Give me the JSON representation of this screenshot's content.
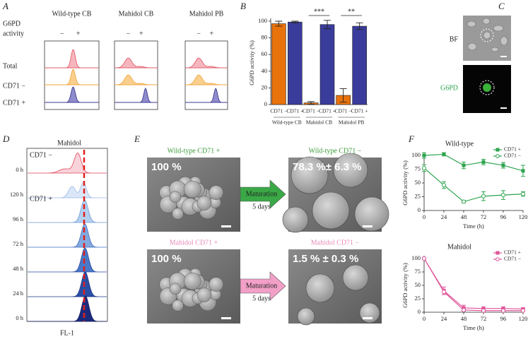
{
  "panels": {
    "a": {
      "label": "A",
      "columns": [
        "Wild-type CB",
        "Mahidol CB",
        "Mahidol PB"
      ],
      "activity_label": [
        "G6PD",
        "activity"
      ],
      "signs": [
        "−",
        "+"
      ],
      "rows": [
        "Total",
        "CD71 −",
        "CD71 +"
      ]
    },
    "c": {
      "label": "C",
      "bf": "BF",
      "g6pd": "G6PD"
    },
    "d": {
      "label": "D",
      "title": "Mahidol",
      "annotations": [
        "CD71 −",
        "CD71 +"
      ],
      "rows": [
        "0 h",
        "120 h",
        "96 h",
        "72 h",
        "48 h",
        "24 h",
        "0 h"
      ],
      "xlabel": "FL-1"
    },
    "e": {
      "label": "E",
      "rows": [
        {
          "left_title": "Wild-type CD71 +",
          "left_value": "100 %",
          "arrow": [
            "Maturation",
            "5 days"
          ],
          "right_title": "Wild-type CD71 −",
          "right_value": "78.3 %± 6.3 %"
        },
        {
          "left_title": "Mahidol CD71 +",
          "left_value": "100 %",
          "arrow": [
            "Maturation",
            "5 days"
          ],
          "right_title": "Mahidol CD71 −",
          "right_value": "1.5 % ± 0.3 %"
        }
      ]
    }
  },
  "chart_data": [
    {
      "type": "bar",
      "panel_label": "B",
      "ylabel": "G6PD activity (%)",
      "categories": [
        "CD71 −",
        "CD71 +",
        "CD71 −",
        "CD71 +",
        "CD71 −",
        "CD71 +"
      ],
      "groups": [
        "Wild-type CB",
        "Mahidol CB",
        "Mahidol PB"
      ],
      "values": [
        97,
        99,
        2,
        96,
        11,
        94
      ],
      "errors": [
        3,
        1,
        1.5,
        5,
        8,
        4
      ],
      "colors": [
        "#e8720c",
        "#3a3c9c",
        "#e8720c",
        "#3a3c9c",
        "#e8720c",
        "#3a3c9c"
      ],
      "ylim": [
        0,
        100
      ],
      "yticks": [
        0,
        20,
        40,
        60,
        80,
        100
      ],
      "annotations": [
        "***",
        "**"
      ]
    },
    {
      "type": "line",
      "panel_label": "F",
      "title": "Wild-type",
      "ylabel": "G6PD activity (%)",
      "xlabel": "Time (h)",
      "x": [
        0,
        24,
        48,
        72,
        96,
        120
      ],
      "xlim": [
        0,
        120
      ],
      "xticks": [
        0,
        24,
        48,
        72,
        96,
        120
      ],
      "ylim": [
        0,
        100
      ],
      "yticks": [
        0,
        25,
        50,
        75,
        100
      ],
      "series": [
        {
          "name": "CD71 +",
          "color": "#2ea44f",
          "marker": "square",
          "values": [
            100,
            102,
            82,
            88,
            82,
            72
          ],
          "errors": [
            5,
            3,
            6,
            5,
            5,
            10
          ]
        },
        {
          "name": "CD71 −",
          "color": "#2ea44f",
          "marker": "circle",
          "values": [
            77,
            46,
            16,
            26,
            28,
            30
          ],
          "errors": [
            6,
            6,
            2,
            8,
            8,
            4
          ]
        }
      ]
    },
    {
      "type": "line",
      "title": "Mahidol",
      "ylabel": "G6PD activity (%)",
      "xlabel": "Time (h)",
      "x": [
        0,
        24,
        48,
        72,
        96,
        120
      ],
      "xlim": [
        0,
        120
      ],
      "xticks": [
        0,
        24,
        48,
        72,
        96,
        120
      ],
      "ylim": [
        0,
        100
      ],
      "yticks": [
        0,
        25,
        50,
        75,
        100
      ],
      "series": [
        {
          "name": "CD71 +",
          "color": "#e0559a",
          "marker": "square",
          "values": [
            100,
            40,
            8,
            7,
            7,
            6
          ],
          "errors": [
            2,
            7,
            5,
            3,
            3,
            2
          ]
        },
        {
          "name": "CD71 −",
          "color": "#e0559a",
          "marker": "circle",
          "values": [
            100,
            38,
            4,
            3,
            3,
            3
          ],
          "errors": [
            2,
            5,
            2,
            2,
            2,
            2
          ]
        }
      ]
    }
  ]
}
